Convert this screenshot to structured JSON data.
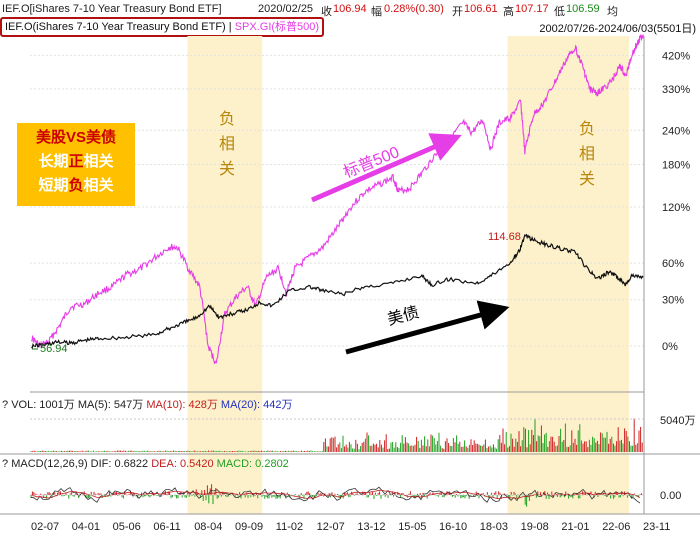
{
  "header": {
    "instrument": "IEF.O[iShares 7-10 Year Treasury Bond ETF]",
    "date": "2020/02/25",
    "close_label": "收",
    "close_value": "106.94",
    "change_label": "幅",
    "change_value": "0.28%(0.30)",
    "open_label": "开",
    "open_value": "106.61",
    "high_label": "高",
    "high_value": "107.17",
    "low_label": "低",
    "low_value": "106.59",
    "avg_label": "均"
  },
  "legend": {
    "series1": "IEF.O(iShares 7-10 Year Treasury Bond ETF)",
    "separator": " | ",
    "series2": "SPX.GI(标普500)"
  },
  "range_text": "2002/07/26-2024/06/03(5501日)",
  "annotation_box": {
    "line1": "美股VS美债",
    "line2_a": "长期",
    "line2_b": "正",
    "line2_c": "相关",
    "line3_a": "短期",
    "line3_b": "负",
    "line3_c": "相关"
  },
  "labels": {
    "neg_corr_1": [
      "负",
      "相",
      "关"
    ],
    "neg_corr_2": [
      "负",
      "相",
      "关"
    ],
    "spx_arrow": "标普500",
    "bond_arrow": "美债",
    "max_marker": "114.68",
    "start_marker": "56.94"
  },
  "vol_pane": {
    "prefix": "?",
    "vol_label": "VOL: 1001万",
    "ma5_label": "MA(5): 547万",
    "ma10_label": "MA(10): 428万",
    "ma20_label": "MA(20): 442万",
    "axis_label": "5040万"
  },
  "macd_pane": {
    "prefix": "?",
    "macd_label": "MACD(12,26,9)",
    "dif_label": "DIF: 0.6822",
    "dea_label": "DEA: 0.5420",
    "macd_val_label": "MACD: 0.2802",
    "axis_label": "0.00"
  },
  "colors": {
    "spx": "#e63ee6",
    "ief": "#111111",
    "highlight": "#fdf1cc",
    "annot_bg": "#ffc000",
    "annot_red": "#cc0000",
    "label_gold": "#b8860b",
    "ma10": "#c02020",
    "ma20": "#2030c0",
    "dea": "#c02020",
    "macd_green": "#20a020"
  },
  "chart_data": {
    "type": "line",
    "x_ticks": [
      "02-07",
      "04-01",
      "05-06",
      "06-11",
      "08-04",
      "09-09",
      "11-02",
      "12-07",
      "13-12",
      "15-05",
      "16-10",
      "18-03",
      "19-08",
      "21-01",
      "22-06",
      "23-11"
    ],
    "y_ticks_right": [
      "420%",
      "330%",
      "240%",
      "180%",
      "120%",
      "60%",
      "30%",
      "0%"
    ],
    "y_scale": "log",
    "highlight_periods": [
      [
        "2008-03",
        "2010-11"
      ],
      [
        "2019-08",
        "2023-12"
      ]
    ],
    "series": [
      {
        "name": "SPX.GI(标普500)",
        "x": [
          2002.6,
          2002.9,
          2003.2,
          2003.6,
          2004.0,
          2004.5,
          2005.0,
          2005.5,
          2006.0,
          2006.5,
          2007.0,
          2007.5,
          2007.8,
          2008.2,
          2008.6,
          2008.9,
          2009.2,
          2009.5,
          2009.9,
          2010.3,
          2010.6,
          2011.0,
          2011.4,
          2011.7,
          2012.0,
          2012.5,
          2013.0,
          2013.5,
          2014.0,
          2014.5,
          2015.0,
          2015.5,
          2015.7,
          2016.1,
          2016.5,
          2017.0,
          2017.5,
          2018.0,
          2018.3,
          2018.7,
          2018.98,
          2019.3,
          2019.7,
          2020.05,
          2020.2,
          2020.5,
          2020.9,
          2021.3,
          2021.7,
          2021.99,
          2022.3,
          2022.5,
          2022.8,
          2023.0,
          2023.3,
          2023.6,
          2023.8,
          2024.0,
          2024.2,
          2024.42
        ],
        "values": [
          0.05,
          0.0,
          0.02,
          0.12,
          0.25,
          0.27,
          0.35,
          0.4,
          0.5,
          0.55,
          0.65,
          0.75,
          0.75,
          0.55,
          0.4,
          0.0,
          -0.1,
          0.2,
          0.32,
          0.4,
          0.25,
          0.48,
          0.55,
          0.35,
          0.55,
          0.65,
          0.75,
          0.95,
          1.2,
          1.4,
          1.5,
          1.6,
          1.4,
          1.45,
          1.65,
          1.95,
          2.2,
          2.55,
          2.35,
          2.6,
          2.05,
          2.55,
          2.65,
          3.0,
          2.0,
          2.7,
          3.0,
          3.5,
          4.1,
          4.45,
          3.8,
          3.3,
          3.2,
          3.3,
          3.5,
          3.9,
          3.6,
          4.2,
          4.55,
          4.85
        ]
      },
      {
        "name": "IEF.O(iShares 7-10 Year Treasury Bond ETF)",
        "x": [
          2002.6,
          2003.0,
          2003.5,
          2004.0,
          2004.5,
          2005.0,
          2006.0,
          2007.0,
          2007.5,
          2008.0,
          2008.5,
          2008.95,
          2009.3,
          2009.8,
          2010.3,
          2010.75,
          2011.2,
          2011.8,
          2012.5,
          2013.0,
          2013.7,
          2014.5,
          2015.5,
          2016.5,
          2016.9,
          2017.5,
          2018.5,
          2019.0,
          2019.7,
          2020.0,
          2020.2,
          2020.6,
          2021.0,
          2021.5,
          2022.0,
          2022.4,
          2022.8,
          2023.2,
          2023.5,
          2023.8,
          2024.0,
          2024.42
        ],
        "values": [
          56.94,
          57.5,
          59.0,
          58.5,
          60.0,
          61.0,
          61.5,
          63.0,
          66.0,
          69.0,
          72.0,
          78.0,
          72.0,
          74.0,
          76.0,
          80.0,
          78.0,
          86.0,
          88.0,
          86.0,
          84.0,
          88.0,
          90.0,
          94.0,
          89.0,
          92.0,
          90.0,
          94.0,
          101.0,
          106.94,
          114.68,
          112.0,
          110.0,
          108.0,
          106.0,
          98.0,
          92.0,
          96.0,
          93.0,
          89.0,
          94.0,
          93.0
        ]
      }
    ],
    "max_marker": {
      "label": "114.68",
      "x": 2020.2
    },
    "start_marker": {
      "label": "56.94",
      "x": 2002.6
    }
  }
}
